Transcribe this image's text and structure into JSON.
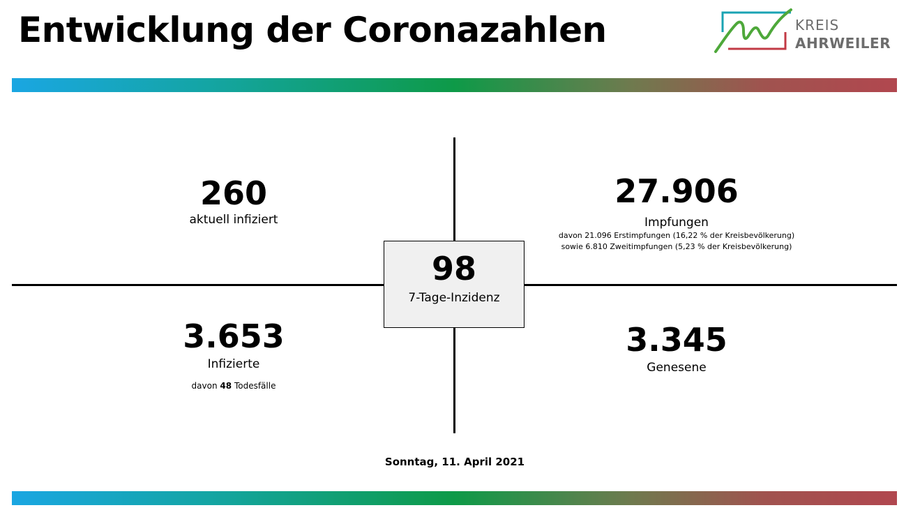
{
  "header": {
    "title": "Entwicklung der Coronazahlen",
    "logo": {
      "line1": "KREIS",
      "line2": "AHRWEILER"
    }
  },
  "colors": {
    "bar_gradient": [
      "#1aa6e2",
      "#14a5a4",
      "#0e9a48",
      "#6f7a4e",
      "#a0534f",
      "#b1474f"
    ],
    "logo_green": "#4ea83a",
    "logo_teal": "#1aa3b3",
    "logo_red": "#c23a45",
    "logo_text": "#6d6d6d",
    "center_box_bg": "#f0f0f0"
  },
  "stats": {
    "active": {
      "value": "260",
      "label": "aktuell infiziert"
    },
    "vaccinations": {
      "value": "27.906",
      "label": "Impfungen",
      "detail1": "davon 21.096 Erstimpfungen (16,22 % der Kreisbevölkerung)",
      "detail2": "sowie 6.810 Zweitimpfungen (5,23 % der Kreisbevölkerung)"
    },
    "incidence": {
      "value": "98",
      "label": "7-Tage-Inzidenz"
    },
    "infected": {
      "value": "3.653",
      "label": "Infizierte",
      "deaths_prefix": "davon",
      "deaths_value": "48",
      "deaths_suffix": "Todesfälle"
    },
    "recovered": {
      "value": "3.345",
      "label": "Genesene"
    }
  },
  "footer": {
    "date": "Sonntag, 11. April 2021"
  }
}
